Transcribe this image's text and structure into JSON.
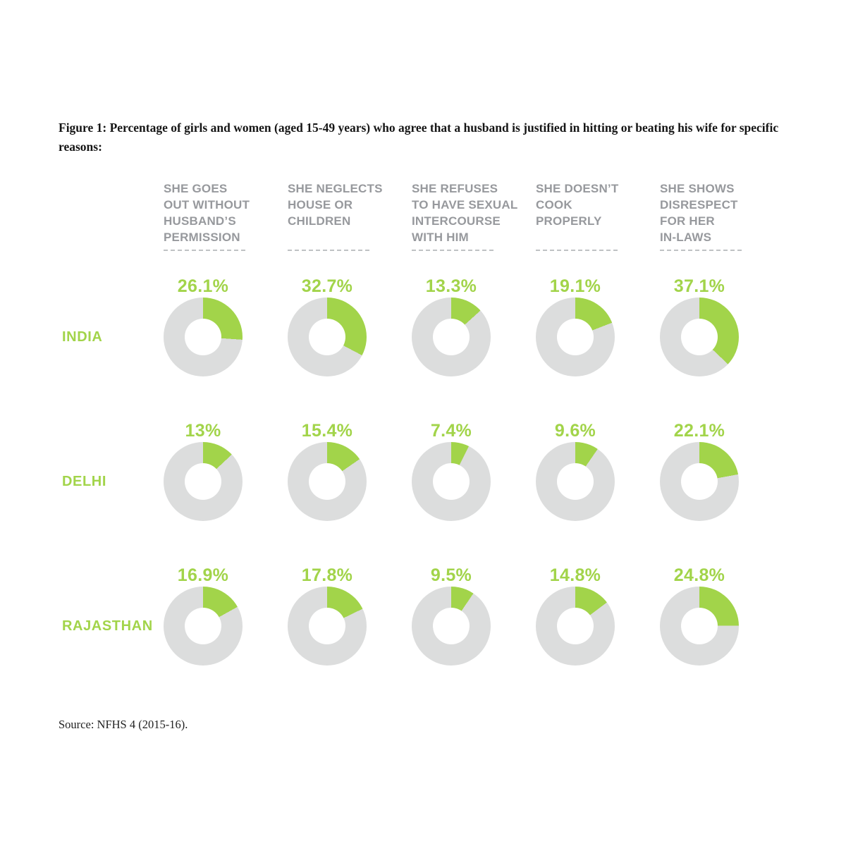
{
  "figure": {
    "title": "Figure 1: Percentage of girls and women (aged 15-49 years) who agree that a husband is justified in hitting or beating his wife for specific reasons:",
    "source": "Source: NFHS 4 (2015-16)."
  },
  "colors": {
    "accent_green": "#a2d44a",
    "track_gray": "#dcdddd",
    "header_gray": "#97999d",
    "dash_gray": "#bfc2c4"
  },
  "chart_data": {
    "type": "donut-grid",
    "unit": "percent",
    "legend": "green slice = share who agree, gray = remainder",
    "columns": [
      "SHE GOES\nOUT WITHOUT\nHUSBAND’S\nPERMISSION",
      "SHE NEGLECTS\nHOUSE OR\nCHILDREN",
      "SHE REFUSES\nTO HAVE SEXUAL\nINTERCOURSE\nWITH HIM",
      "SHE DOESN’T\nCOOK\nPROPERLY",
      "SHE SHOWS\nDISRESPECT\nFOR HER\nIN-LAWS"
    ],
    "rows": [
      {
        "label": "INDIA",
        "values": [
          26.1,
          32.7,
          13.3,
          19.1,
          37.1
        ],
        "value_labels": [
          "26.1%",
          "32.7%",
          "13.3%",
          "19.1%",
          "37.1%"
        ]
      },
      {
        "label": "DELHI",
        "values": [
          13,
          15.4,
          7.4,
          9.6,
          22.1
        ],
        "value_labels": [
          "13%",
          "15.4%",
          "7.4%",
          "9.6%",
          "22.1%"
        ]
      },
      {
        "label": "RAJASTHAN",
        "values": [
          16.9,
          17.8,
          9.5,
          14.8,
          24.8
        ],
        "value_labels": [
          "16.9%",
          "17.8%",
          "9.5%",
          "14.8%",
          "24.8%"
        ]
      }
    ]
  }
}
